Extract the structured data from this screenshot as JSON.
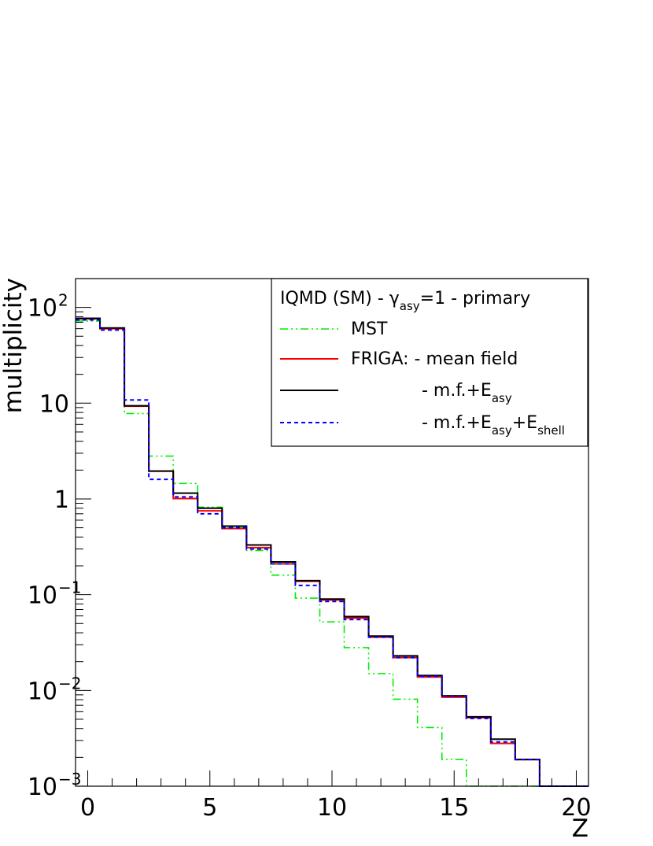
{
  "chart_data": {
    "type": "line",
    "subtype": "step-histogram",
    "xlabel": "Z",
    "ylabel": "multiplicity",
    "xlim": [
      -0.5,
      20.5
    ],
    "ylim": [
      0.001,
      200
    ],
    "yscale": "log",
    "grid": false,
    "legend_position": "top-right",
    "x_ticks": [
      {
        "value": 0,
        "label": "0"
      },
      {
        "value": 5,
        "label": "5"
      },
      {
        "value": 10,
        "label": "10"
      },
      {
        "value": 15,
        "label": "15"
      },
      {
        "value": 20,
        "label": "20"
      }
    ],
    "y_ticks": [
      {
        "value": 100,
        "base": "10",
        "exp": "2"
      },
      {
        "value": 10,
        "base": "10",
        "exp": ""
      },
      {
        "value": 1,
        "base": "1",
        "exp": ""
      },
      {
        "value": 0.1,
        "base": "10",
        "exp": "−1"
      },
      {
        "value": 0.01,
        "base": "10",
        "exp": "−2"
      },
      {
        "value": 0.001,
        "base": "10",
        "exp": "−3"
      }
    ],
    "legend_header": {
      "prefix": "IQMD (SM) - γ",
      "sub": "asy",
      "suffix": "=1 - primary"
    },
    "legend_entries": [
      {
        "series": 0,
        "parts": [
          {
            "t": "MST"
          }
        ]
      },
      {
        "series": 1,
        "parts": [
          {
            "t": "FRIGA: - mean field"
          }
        ]
      },
      {
        "series": 2,
        "parts": [
          {
            "t": "- m.f.+E"
          },
          {
            "t": "asy",
            "sub": true
          }
        ]
      },
      {
        "series": 3,
        "parts": [
          {
            "t": "- m.f.+E"
          },
          {
            "t": "asy",
            "sub": true
          },
          {
            "t": "+E"
          },
          {
            "t": "shell",
            "sub": true
          }
        ]
      }
    ],
    "bin_edges": [
      -0.5,
      0.5,
      1.5,
      2.5,
      3.5,
      4.5,
      5.5,
      6.5,
      7.5,
      8.5,
      9.5,
      10.5,
      11.5,
      12.5,
      13.5,
      14.5,
      15.5,
      16.5,
      17.5,
      18.5,
      19.5,
      20.5
    ],
    "series": [
      {
        "color": "#00ee00",
        "dash": "10,4,2,4,2,4",
        "width": 1.6,
        "values": [
          72,
          60,
          7.8,
          2.8,
          1.45,
          0.82,
          0.5,
          0.29,
          0.16,
          0.092,
          0.052,
          0.028,
          0.015,
          0.0081,
          0.0041,
          0.0019,
          0.001,
          0.001,
          0.001,
          0.001,
          0.001
        ]
      },
      {
        "color": "#ff0000",
        "dash": "",
        "width": 2,
        "values": [
          76,
          60,
          9.3,
          1.95,
          1.01,
          0.75,
          0.49,
          0.31,
          0.21,
          0.138,
          0.088,
          0.057,
          0.036,
          0.022,
          0.0138,
          0.0085,
          0.0052,
          0.0028,
          0.0019,
          0.001,
          0.001
        ]
      },
      {
        "color": "#000000",
        "dash": "",
        "width": 2,
        "values": [
          77,
          61,
          9.4,
          1.95,
          1.15,
          0.8,
          0.52,
          0.33,
          0.22,
          0.14,
          0.09,
          0.059,
          0.037,
          0.023,
          0.0143,
          0.0088,
          0.0053,
          0.0031,
          0.0019,
          0.001,
          0.001
        ]
      },
      {
        "color": "#0000ff",
        "dash": "5,4",
        "width": 2,
        "values": [
          74,
          58,
          10.8,
          1.6,
          1.05,
          0.7,
          0.5,
          0.3,
          0.21,
          0.125,
          0.085,
          0.055,
          0.036,
          0.022,
          0.014,
          0.0087,
          0.0051,
          0.0029,
          0.0019,
          0.001,
          0.001
        ]
      }
    ]
  }
}
